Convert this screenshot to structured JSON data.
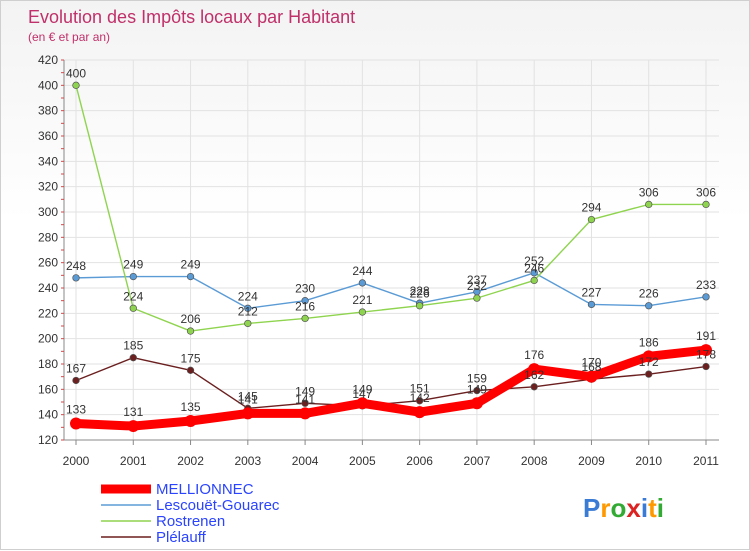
{
  "chart_data": {
    "type": "line",
    "title": "Evolution des Impôts locaux par Habitant",
    "subtitle": "(en € et par an)",
    "xlabel": "",
    "ylabel": "",
    "x": [
      "2000",
      "2001",
      "2002",
      "2003",
      "2004",
      "2005",
      "2006",
      "2007",
      "2008",
      "2009",
      "2010",
      "2011"
    ],
    "ylim": [
      120,
      420
    ],
    "yticks": [
      120,
      140,
      160,
      180,
      200,
      220,
      240,
      260,
      280,
      300,
      320,
      340,
      360,
      380,
      400,
      420
    ],
    "grid": true,
    "legend_position": "bottom-left",
    "series": [
      {
        "name": "MELLIONNEC",
        "color": "#ff0000",
        "values": [
          133,
          131,
          135,
          141,
          141,
          149,
          142,
          149,
          176,
          170,
          186,
          191
        ],
        "labels": [
          "133",
          "131",
          "135",
          "141",
          "141",
          "149",
          "142",
          "149",
          "176",
          "170",
          "186",
          "191"
        ]
      },
      {
        "name": "Lescouët-Gouarec",
        "color": "#5b9bd5",
        "values": [
          248,
          249,
          249,
          224,
          230,
          244,
          228,
          237,
          252,
          227,
          226,
          233
        ],
        "labels": [
          "248",
          "249",
          "249",
          "224",
          "230",
          "244",
          "228",
          "237",
          "252",
          "227",
          "226",
          "233"
        ]
      },
      {
        "name": "Rostrenen",
        "color": "#8fd44f",
        "values": [
          400,
          224,
          206,
          212,
          216,
          221,
          226,
          232,
          246,
          294,
          306,
          306
        ],
        "labels": [
          "400",
          "224",
          "206",
          "212",
          "216",
          "221",
          "226",
          "232",
          "246",
          "294",
          "306",
          "306"
        ]
      },
      {
        "name": "Plélauff",
        "color": "#6b1f1f",
        "values": [
          167,
          185,
          175,
          145,
          149,
          147,
          151,
          159,
          162,
          168,
          172,
          178
        ],
        "labels": [
          "167",
          "185",
          "175",
          "145",
          "149",
          "147",
          "151",
          "159",
          "162",
          "168",
          "172",
          "178"
        ]
      }
    ]
  },
  "brand": {
    "logo_text": "Proxiti",
    "letters": [
      "P",
      "r",
      "o",
      "x",
      "i",
      "t",
      "i"
    ],
    "colors": [
      "#3a7bd5",
      "#ff9900",
      "#33aa33",
      "#dd2222",
      "#3a7bd5",
      "#ff9900",
      "#33aa33"
    ]
  }
}
